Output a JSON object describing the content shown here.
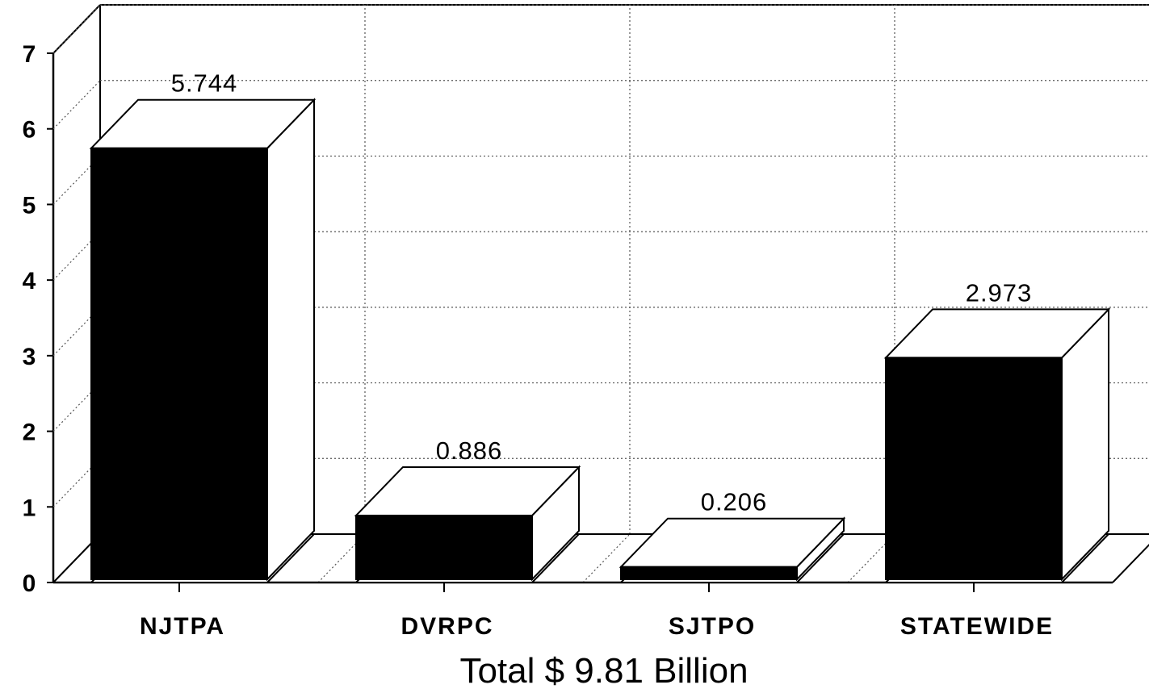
{
  "chart_data": {
    "type": "bar",
    "categories": [
      "NJTPA",
      "DVRPC",
      "SJTPO",
      "STATEWIDE"
    ],
    "values": [
      5.744,
      0.886,
      0.206,
      2.973
    ],
    "value_labels": [
      "5.744",
      "0.886",
      "0.206",
      "2.973"
    ],
    "xlabel": "Total $ 9.81 Billion",
    "ylabel": "",
    "title": "",
    "ylim": [
      0,
      7
    ],
    "yticks": [
      0,
      1,
      2,
      3,
      4,
      5,
      6,
      7
    ],
    "grid": true,
    "style": "3d",
    "colors": {
      "bar_front": "#000000",
      "bar_side": "#ffffff",
      "outline": "#000000",
      "grid": "#555555"
    }
  }
}
